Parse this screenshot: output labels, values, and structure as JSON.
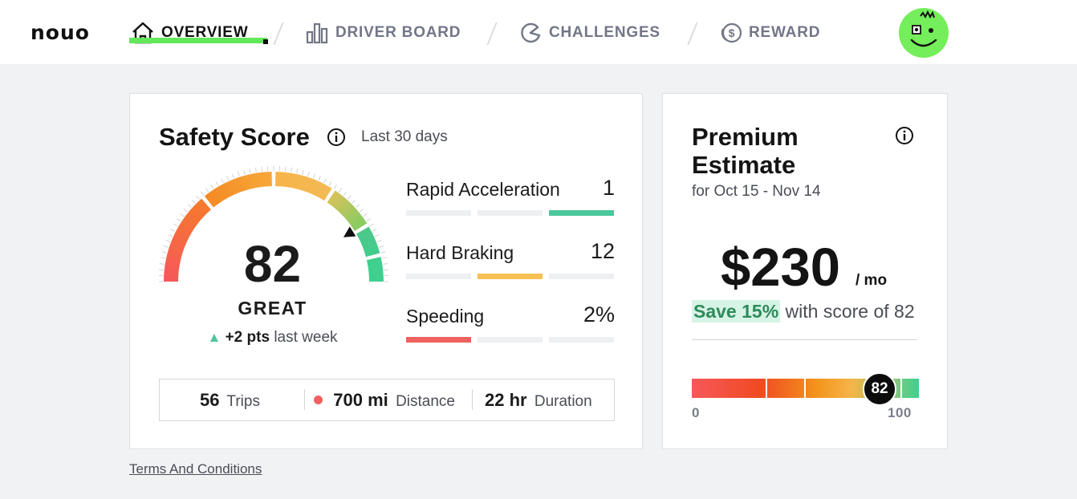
{
  "header": {
    "logo": "nouo",
    "nav": [
      {
        "label": "OVERVIEW",
        "icon": "home-icon",
        "active": true
      },
      {
        "label": "DRIVER BOARD",
        "icon": "bar-chart-icon",
        "active": false
      },
      {
        "label": "CHALLENGES",
        "icon": "challenge-icon",
        "active": false
      },
      {
        "label": "REWARD",
        "icon": "coin-icon",
        "active": false
      }
    ],
    "avatar_icon": "smiley-avatar-icon",
    "accent_color": "#63e85a"
  },
  "safety": {
    "title": "Safety Score",
    "period": "Last 30 days",
    "score": "82",
    "score_value": 82,
    "score_max": 100,
    "rating": "GREAT",
    "delta_value": "+2 pts",
    "delta_suffix": "last week",
    "metrics": [
      {
        "name": "Rapid Acceleration",
        "value": "1",
        "level": 3,
        "color": "#4cc79a"
      },
      {
        "name": "Hard Braking",
        "value": "12",
        "level": 2,
        "color": "#f7c155"
      },
      {
        "name": "Speeding",
        "value": "2%",
        "level": 1,
        "color": "#f0605e"
      }
    ],
    "stats": [
      {
        "value": "56",
        "label": "Trips"
      },
      {
        "value": "700 mi",
        "label": "Distance"
      },
      {
        "value": "22 hr",
        "label": "Duration"
      }
    ]
  },
  "premium": {
    "title_line1": "Premium",
    "title_line2": "Estimate",
    "subtitle": "for Oct 15 - Nov 14",
    "price": "$230",
    "unit": "/ mo",
    "save_highlight": "Save 15%",
    "save_rest": " with score of 82",
    "scale_min": "0",
    "scale_max": "100",
    "marker": "82",
    "marker_value": 82
  },
  "footer": {
    "terms": "Terms And Conditions"
  }
}
